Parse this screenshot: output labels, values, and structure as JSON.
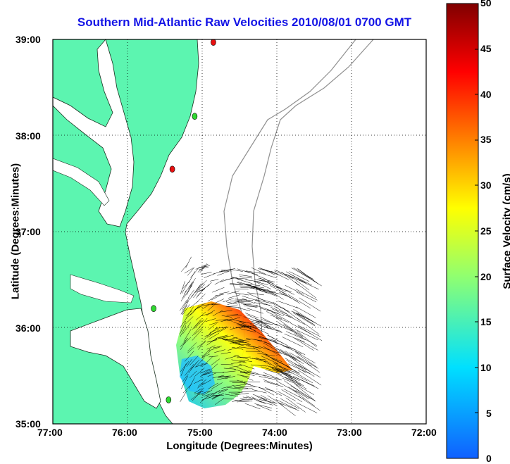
{
  "title": "Southern Mid-Atlantic Raw Velocities 2010/08/01 0700 GMT",
  "map": {
    "xlabel": "Longitude (Degrees:Minutes)",
    "ylabel": "Latitude (Degrees:Minutes)",
    "lon_ticks": [
      "77:00",
      "76:00",
      "75:00",
      "74:00",
      "73:00",
      "72:00"
    ],
    "lat_ticks": [
      "39:00",
      "38:00",
      "37:00",
      "36:00",
      "35:00"
    ],
    "lon_range": [
      -77,
      -72
    ],
    "lat_range": [
      35,
      39
    ],
    "grid": "dotted",
    "land_color": "#5cf5b0",
    "stations": [
      {
        "lon": -74.85,
        "lat": 38.97,
        "color": "#e81010"
      },
      {
        "lon": -75.1,
        "lat": 38.2,
        "color": "#2fd830"
      },
      {
        "lon": -75.4,
        "lat": 37.65,
        "color": "#e81010"
      },
      {
        "lon": -75.65,
        "lat": 36.2,
        "color": "#2fd830"
      },
      {
        "lon": -75.45,
        "lat": 35.25,
        "color": "#2fd830"
      }
    ]
  },
  "colorbar": {
    "label": "Surface Velocity (cm/s)",
    "ticks": [
      "50",
      "45",
      "40",
      "35",
      "30",
      "25",
      "20",
      "15",
      "10",
      "5",
      "0"
    ],
    "range": [
      0,
      50
    ],
    "colors": [
      "#1060ff",
      "#00e0ff",
      "#90ff70",
      "#ffff00",
      "#ff8000",
      "#ff0000",
      "#800000"
    ]
  }
}
